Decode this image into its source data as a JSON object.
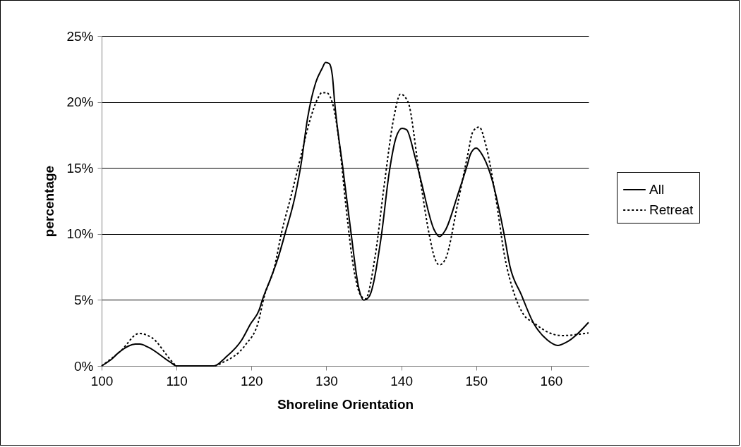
{
  "chart_data": {
    "type": "line",
    "xlabel": "Shoreline Orientation",
    "ylabel": "percentage",
    "xlim": [
      100,
      165
    ],
    "xticks": [
      100,
      110,
      120,
      130,
      140,
      150,
      160
    ],
    "ylim": [
      0,
      25
    ],
    "yticks": [
      {
        "value": 0,
        "label": "0%"
      },
      {
        "value": 5,
        "label": "5%"
      },
      {
        "value": 10,
        "label": "10%"
      },
      {
        "value": 15,
        "label": "15%"
      },
      {
        "value": 20,
        "label": "20%"
      },
      {
        "value": 25,
        "label": "25%"
      }
    ],
    "grid": "y",
    "legend": "right",
    "series": [
      {
        "name": "All",
        "color": "#000000",
        "line_style": "solid",
        "x": [
          100,
          101.2,
          102.4,
          104.5,
          105.1,
          106.2,
          109.2,
          110,
          115,
          116.5,
          118.7,
          119.9,
          121,
          121.5,
          122.6,
          123.6,
          124.5,
          125.8,
          126.6,
          127.5,
          128.6,
          129.4,
          129.9,
          130.4,
          130.8,
          131.1,
          132.2,
          133.3,
          134.3,
          135,
          135.7,
          137.3,
          138.4,
          139.3,
          140.1,
          140.7,
          141.8,
          142.6,
          144.4,
          145.1,
          145.9,
          147.5,
          148.9,
          149.2,
          150,
          150.8,
          151.8,
          153.7,
          154.5,
          156,
          157.6,
          159.5,
          160.9,
          162,
          165
        ],
        "values": [
          0,
          0.45,
          1.07,
          1.65,
          1.65,
          1.42,
          0.27,
          0,
          0,
          0.62,
          1.96,
          3.2,
          4.2,
          5.07,
          6.67,
          8.27,
          10.05,
          12.8,
          15.2,
          18.8,
          21.5,
          22.5,
          23,
          22.9,
          22,
          20,
          15,
          10.05,
          5.96,
          4.98,
          5.25,
          9.7,
          14.7,
          17.3,
          18,
          17.9,
          15.9,
          14.1,
          10.3,
          9.8,
          10.3,
          12.9,
          15.4,
          16,
          16.5,
          16,
          14.7,
          10.05,
          7.56,
          5.43,
          3.3,
          1.96,
          1.55,
          1.78,
          3.3
        ]
      },
      {
        "name": "Retreat",
        "color": "#000000",
        "line_style": "dotted",
        "x": [
          100,
          102.6,
          105,
          106.7,
          109.5,
          110,
          115,
          116.2,
          119.2,
          120.9,
          121.7,
          123.1,
          124,
          125.3,
          126.6,
          127.8,
          128.8,
          129.4,
          130,
          131,
          131.8,
          132.7,
          133.6,
          134.5,
          135.2,
          136.5,
          137.7,
          139,
          139.9,
          140.9,
          142.3,
          143.7,
          144.5,
          145.1,
          145.9,
          147.5,
          148.8,
          149.6,
          150.4,
          151.3,
          152.6,
          153.8,
          155.1,
          156.4,
          157.6,
          159.8,
          161.4,
          165
        ],
        "values": [
          0,
          1.16,
          2.46,
          2.14,
          0.27,
          0,
          0,
          0.27,
          1.6,
          3.3,
          5.25,
          7.56,
          10.05,
          12.9,
          15.9,
          18.6,
          20.2,
          20.7,
          20.7,
          19.5,
          16.5,
          11.65,
          7.56,
          5.43,
          5.07,
          8.27,
          13.6,
          18.8,
          20.6,
          20,
          15,
          10.05,
          8.1,
          7.65,
          8.1,
          12.2,
          15.8,
          17.8,
          18.1,
          16.7,
          12.8,
          8.3,
          5.43,
          3.83,
          3.3,
          2.5,
          2.3,
          2.5
        ]
      }
    ]
  }
}
